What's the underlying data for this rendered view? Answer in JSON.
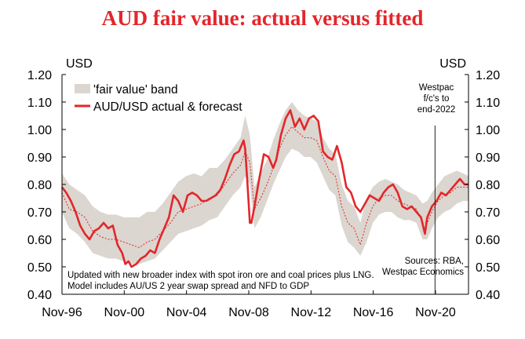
{
  "chart_data": {
    "type": "line",
    "title": "AUD fair value: actual versus fitted",
    "ylabel_left": "USD",
    "ylabel_right": "USD",
    "ylim": [
      0.4,
      1.2
    ],
    "yticks": [
      "0.40",
      "0.50",
      "0.60",
      "0.70",
      "0.80",
      "0.90",
      "1.00",
      "1.10",
      "1.20"
    ],
    "xlim": [
      1996.83,
      2022.95
    ],
    "xticks": [
      {
        "label": "Nov-96",
        "x": 1996.83
      },
      {
        "label": "Nov-00",
        "x": 2000.83
      },
      {
        "label": "Nov-04",
        "x": 2004.83
      },
      {
        "label": "Nov-08",
        "x": 2008.83
      },
      {
        "label": "Nov-12",
        "x": 2012.83
      },
      {
        "label": "Nov-16",
        "x": 2016.83
      },
      {
        "label": "Nov-20",
        "x": 2020.83
      }
    ],
    "legend": {
      "position": "top-left",
      "band_label": "'fair value' band",
      "line_label": "AUD/USD actual & forecast"
    },
    "annotations": {
      "forecast_note": [
        "Westpac",
        "f/c's to",
        "end-2022"
      ],
      "forecast_start_x": 2020.8,
      "sources": [
        "Sources: RBA,",
        "Westpac Economics"
      ],
      "footnote": [
        "Updated with new broader index with spot iron ore and coal prices plus LNG.",
        "Model includes AU/US 2 year swap spread and NFD to GDP"
      ]
    },
    "colors": {
      "actual": "#e3262b",
      "fitted": "#e3262b",
      "band": "#dbd6cf",
      "title": "#e3262b",
      "axis": "#000000"
    },
    "series": [
      {
        "name": "AUD/USD actual & forecast",
        "style": "solid",
        "x": [
          1996.83,
          1997.1,
          1997.4,
          1997.7,
          1998.0,
          1998.3,
          1998.6,
          1998.9,
          1999.2,
          1999.5,
          1999.8,
          2000.1,
          2000.4,
          2000.7,
          2000.9,
          2001.1,
          2001.3,
          2001.6,
          2001.9,
          2002.2,
          2002.5,
          2002.8,
          2003.1,
          2003.4,
          2003.7,
          2004.0,
          2004.3,
          2004.6,
          2004.9,
          2005.2,
          2005.5,
          2005.8,
          2006.1,
          2006.4,
          2006.7,
          2007.0,
          2007.3,
          2007.6,
          2007.9,
          2008.2,
          2008.5,
          2008.6,
          2008.75,
          2008.9,
          2009.0,
          2009.2,
          2009.5,
          2009.8,
          2010.1,
          2010.4,
          2010.6,
          2010.9,
          2011.2,
          2011.5,
          2011.8,
          2012.1,
          2012.4,
          2012.7,
          2013.0,
          2013.3,
          2013.6,
          2013.9,
          2014.2,
          2014.5,
          2014.8,
          2015.1,
          2015.4,
          2015.7,
          2016.0,
          2016.3,
          2016.6,
          2016.9,
          2017.2,
          2017.5,
          2017.8,
          2018.1,
          2018.4,
          2018.7,
          2019.0,
          2019.3,
          2019.6,
          2019.9,
          2020.15,
          2020.3,
          2020.6,
          2020.9,
          2021.2,
          2021.5,
          2021.8,
          2022.1,
          2022.4,
          2022.7,
          2022.95
        ],
        "values": [
          0.79,
          0.77,
          0.74,
          0.7,
          0.65,
          0.62,
          0.6,
          0.63,
          0.64,
          0.66,
          0.64,
          0.65,
          0.58,
          0.55,
          0.51,
          0.52,
          0.5,
          0.51,
          0.53,
          0.54,
          0.56,
          0.55,
          0.6,
          0.64,
          0.68,
          0.76,
          0.74,
          0.7,
          0.76,
          0.77,
          0.76,
          0.74,
          0.74,
          0.75,
          0.76,
          0.78,
          0.82,
          0.87,
          0.91,
          0.92,
          0.96,
          0.93,
          0.8,
          0.66,
          0.66,
          0.72,
          0.82,
          0.91,
          0.9,
          0.86,
          0.89,
          0.98,
          1.04,
          1.07,
          1.01,
          1.04,
          1.0,
          1.04,
          1.05,
          1.03,
          0.92,
          0.9,
          0.89,
          0.94,
          0.88,
          0.79,
          0.77,
          0.72,
          0.7,
          0.73,
          0.76,
          0.75,
          0.74,
          0.77,
          0.79,
          0.8,
          0.77,
          0.72,
          0.71,
          0.72,
          0.7,
          0.68,
          0.62,
          0.68,
          0.72,
          0.74,
          0.77,
          0.76,
          0.78,
          0.8,
          0.82,
          0.8,
          0.8
        ]
      },
      {
        "name": "fitted fair value",
        "style": "dashed",
        "x": [
          1996.83,
          1997.3,
          1997.8,
          1998.3,
          1998.8,
          1999.3,
          1999.8,
          2000.3,
          2000.8,
          2001.3,
          2001.8,
          2002.3,
          2002.8,
          2003.3,
          2003.8,
          2004.3,
          2004.8,
          2005.3,
          2005.8,
          2006.3,
          2006.8,
          2007.3,
          2007.8,
          2008.3,
          2008.6,
          2008.9,
          2009.2,
          2009.6,
          2010.0,
          2010.4,
          2010.8,
          2011.2,
          2011.6,
          2012.0,
          2012.4,
          2012.8,
          2013.2,
          2013.6,
          2014.0,
          2014.4,
          2014.8,
          2015.2,
          2015.6,
          2016.0,
          2016.4,
          2016.8,
          2017.2,
          2017.6,
          2018.0,
          2018.4,
          2018.8,
          2019.2,
          2019.6,
          2020.0,
          2020.3,
          2020.6,
          2021.0,
          2021.4,
          2021.8,
          2022.2,
          2022.6,
          2022.95
        ],
        "values": [
          0.77,
          0.71,
          0.7,
          0.68,
          0.63,
          0.61,
          0.6,
          0.6,
          0.59,
          0.58,
          0.57,
          0.59,
          0.6,
          0.63,
          0.66,
          0.7,
          0.71,
          0.72,
          0.73,
          0.75,
          0.76,
          0.8,
          0.84,
          0.87,
          0.92,
          0.88,
          0.71,
          0.75,
          0.8,
          0.86,
          0.93,
          0.98,
          1.01,
          0.99,
          0.97,
          0.97,
          0.96,
          0.9,
          0.85,
          0.83,
          0.72,
          0.66,
          0.64,
          0.58,
          0.66,
          0.72,
          0.75,
          0.76,
          0.76,
          0.74,
          0.73,
          0.72,
          0.71,
          0.66,
          0.66,
          0.7,
          0.74,
          0.76,
          0.77,
          0.79,
          0.79,
          0.79
        ]
      }
    ],
    "band": {
      "name": "'fair value' band",
      "x": [
        1996.83,
        1997.3,
        1997.8,
        1998.3,
        1998.8,
        1999.3,
        1999.8,
        2000.3,
        2000.8,
        2001.3,
        2001.8,
        2002.3,
        2002.8,
        2003.3,
        2003.8,
        2004.3,
        2004.8,
        2005.3,
        2005.8,
        2006.3,
        2006.8,
        2007.3,
        2007.8,
        2008.3,
        2008.6,
        2008.9,
        2009.2,
        2009.6,
        2010.0,
        2010.4,
        2010.8,
        2011.2,
        2011.6,
        2012.0,
        2012.4,
        2012.8,
        2013.2,
        2013.6,
        2014.0,
        2014.4,
        2014.8,
        2015.2,
        2015.6,
        2016.0,
        2016.4,
        2016.8,
        2017.2,
        2017.6,
        2018.0,
        2018.4,
        2018.8,
        2019.2,
        2019.6,
        2020.0,
        2020.3,
        2020.6,
        2021.0,
        2021.4,
        2021.8,
        2022.2,
        2022.6,
        2022.95
      ],
      "upper": [
        0.84,
        0.8,
        0.78,
        0.76,
        0.72,
        0.7,
        0.69,
        0.69,
        0.68,
        0.68,
        0.68,
        0.7,
        0.7,
        0.73,
        0.77,
        0.81,
        0.83,
        0.84,
        0.83,
        0.86,
        0.86,
        0.89,
        0.93,
        0.97,
        1.05,
        0.98,
        0.79,
        0.84,
        0.89,
        0.96,
        1.02,
        1.07,
        1.1,
        1.07,
        1.05,
        1.04,
        1.03,
        0.97,
        0.93,
        0.91,
        0.8,
        0.74,
        0.72,
        0.66,
        0.75,
        0.79,
        0.81,
        0.82,
        0.81,
        0.8,
        0.78,
        0.77,
        0.76,
        0.73,
        0.74,
        0.77,
        0.8,
        0.83,
        0.84,
        0.85,
        0.84,
        0.83
      ],
      "lower": [
        0.7,
        0.64,
        0.62,
        0.59,
        0.55,
        0.54,
        0.53,
        0.53,
        0.52,
        0.51,
        0.51,
        0.52,
        0.53,
        0.56,
        0.59,
        0.62,
        0.63,
        0.64,
        0.65,
        0.67,
        0.68,
        0.72,
        0.76,
        0.79,
        0.83,
        0.8,
        0.64,
        0.68,
        0.74,
        0.8,
        0.85,
        0.9,
        0.93,
        0.92,
        0.9,
        0.9,
        0.88,
        0.83,
        0.78,
        0.76,
        0.65,
        0.59,
        0.57,
        0.54,
        0.59,
        0.66,
        0.69,
        0.7,
        0.7,
        0.68,
        0.67,
        0.67,
        0.66,
        0.6,
        0.6,
        0.64,
        0.68,
        0.7,
        0.71,
        0.73,
        0.74,
        0.74
      ]
    }
  }
}
